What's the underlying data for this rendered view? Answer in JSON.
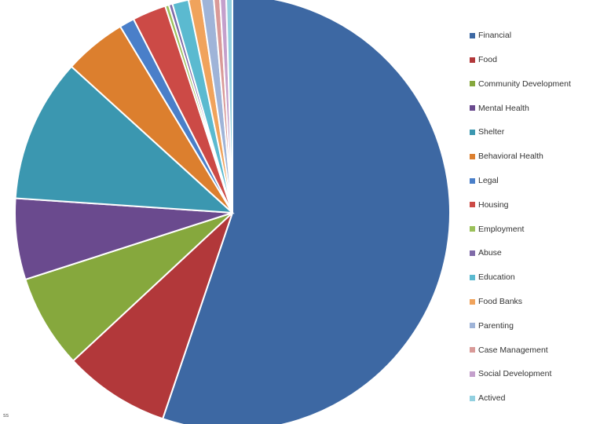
{
  "chart_data": {
    "type": "pie",
    "title": "",
    "legend_position": "right",
    "categories": [
      "Financial",
      "Food",
      "Community Development",
      "Mental Health",
      "Shelter",
      "Behavioral Health",
      "Legal",
      "Housing",
      "Employment",
      "Abuse",
      "Education",
      "Food Banks",
      "Parenting",
      "Case Management",
      "Social Development",
      "Actived"
    ],
    "values": [
      59.5,
      8.5,
      7.5,
      6.5,
      11.5,
      5.0,
      1.2,
      2.7,
      0.3,
      0.3,
      1.3,
      1.0,
      1.0,
      0.5,
      0.5,
      0.5
    ],
    "colors": [
      "#3d68a3",
      "#b2383a",
      "#86a83d",
      "#6a4a8e",
      "#3b97b0",
      "#dc7f2e",
      "#4a7fc9",
      "#cc4a46",
      "#9bc15a",
      "#7f6aa8",
      "#5bbad0",
      "#f0a35c",
      "#9fb4d8",
      "#d99a98",
      "#c4a0cc",
      "#92d0e0"
    ]
  },
  "corner_mark": "ss"
}
